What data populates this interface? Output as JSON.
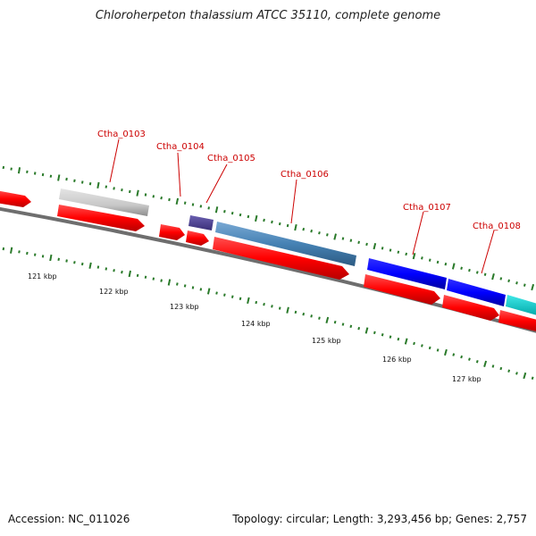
{
  "title": "Chloroherpeton thalassium ATCC 35110, complete genome",
  "accession": "Accession: NC_011026",
  "topology": "Topology: circular; Length: 3,293,456 bp; Genes: 2,757",
  "colors": {
    "cds": "#ff0000",
    "grey_feature": "#c8c8c8",
    "steelblue_feature": "#4682b4",
    "darkslate_feature": "#483d8b",
    "blue_feature": "#0000ff",
    "cyan_feature": "#00cccc",
    "tick": "#2a7a2a",
    "backbone": "#777777",
    "label": "#cc0000"
  },
  "gene_labels": [
    {
      "id": "ctha-0103",
      "text": "Ctha_0103"
    },
    {
      "id": "ctha-0104",
      "text": "Ctha_0104"
    },
    {
      "id": "ctha-0105",
      "text": "Ctha_0105"
    },
    {
      "id": "ctha-0106",
      "text": "Ctha_0106"
    },
    {
      "id": "ctha-0107",
      "text": "Ctha_0107"
    },
    {
      "id": "ctha-0108",
      "text": "Ctha_0108"
    }
  ],
  "scale_labels": [
    "121 kbp",
    "122 kbp",
    "123 kbp",
    "124 kbp",
    "125 kbp",
    "126 kbp",
    "127 kbp"
  ]
}
